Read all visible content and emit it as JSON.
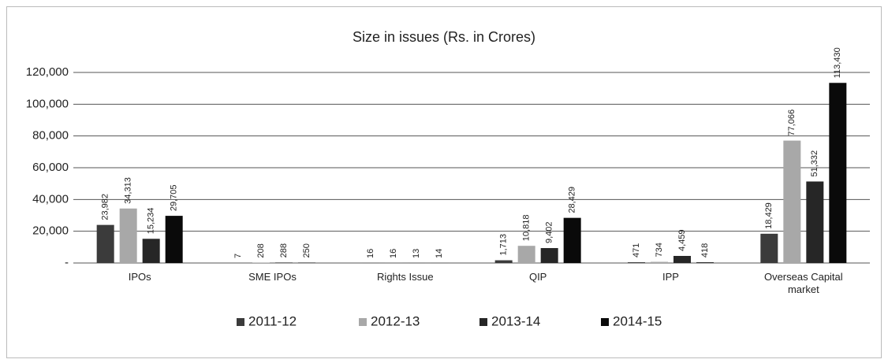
{
  "chart_data": {
    "type": "bar",
    "title": "Size in issues (Rs. in Crores)",
    "categories": [
      "IPOs",
      "SME IPOs",
      "Rights Issue",
      "QIP",
      "IPP",
      "Overseas Capital market"
    ],
    "series": [
      {
        "name": "2011-12",
        "color": "#3b3b3b",
        "values": [
          23982,
          7,
          16,
          1713,
          471,
          18429
        ],
        "value_labels": [
          "23,982",
          "7",
          "16",
          "1,713",
          "471",
          "18,429"
        ]
      },
      {
        "name": "2012-13",
        "color": "#a8a8a8",
        "values": [
          34313,
          208,
          16,
          10818,
          734,
          77066
        ],
        "value_labels": [
          "34,313",
          "208",
          "16",
          "10,818",
          "734",
          "77,066"
        ]
      },
      {
        "name": "2013-14",
        "color": "#262626",
        "values": [
          15234,
          288,
          13,
          9402,
          4459,
          51332
        ],
        "value_labels": [
          "15,234",
          "288",
          "13",
          "9,402",
          "4,459",
          "51,332"
        ]
      },
      {
        "name": "2014-15",
        "color": "#0a0a0a",
        "values": [
          29705,
          250,
          14,
          28429,
          418,
          113430
        ],
        "value_labels": [
          "29,705",
          "250",
          "14",
          "28,429",
          "418",
          "113,430"
        ]
      }
    ],
    "ylim": [
      0,
      120000
    ],
    "yticks": [
      {
        "value": 0,
        "label": "-"
      },
      {
        "value": 20000,
        "label": "20,000"
      },
      {
        "value": 40000,
        "label": "40,000"
      },
      {
        "value": 60000,
        "label": "60,000"
      },
      {
        "value": 80000,
        "label": "80,000"
      },
      {
        "value": 100000,
        "label": "100,000"
      },
      {
        "value": 120000,
        "label": "120,000"
      }
    ],
    "grid": true,
    "legend": "bottom"
  }
}
